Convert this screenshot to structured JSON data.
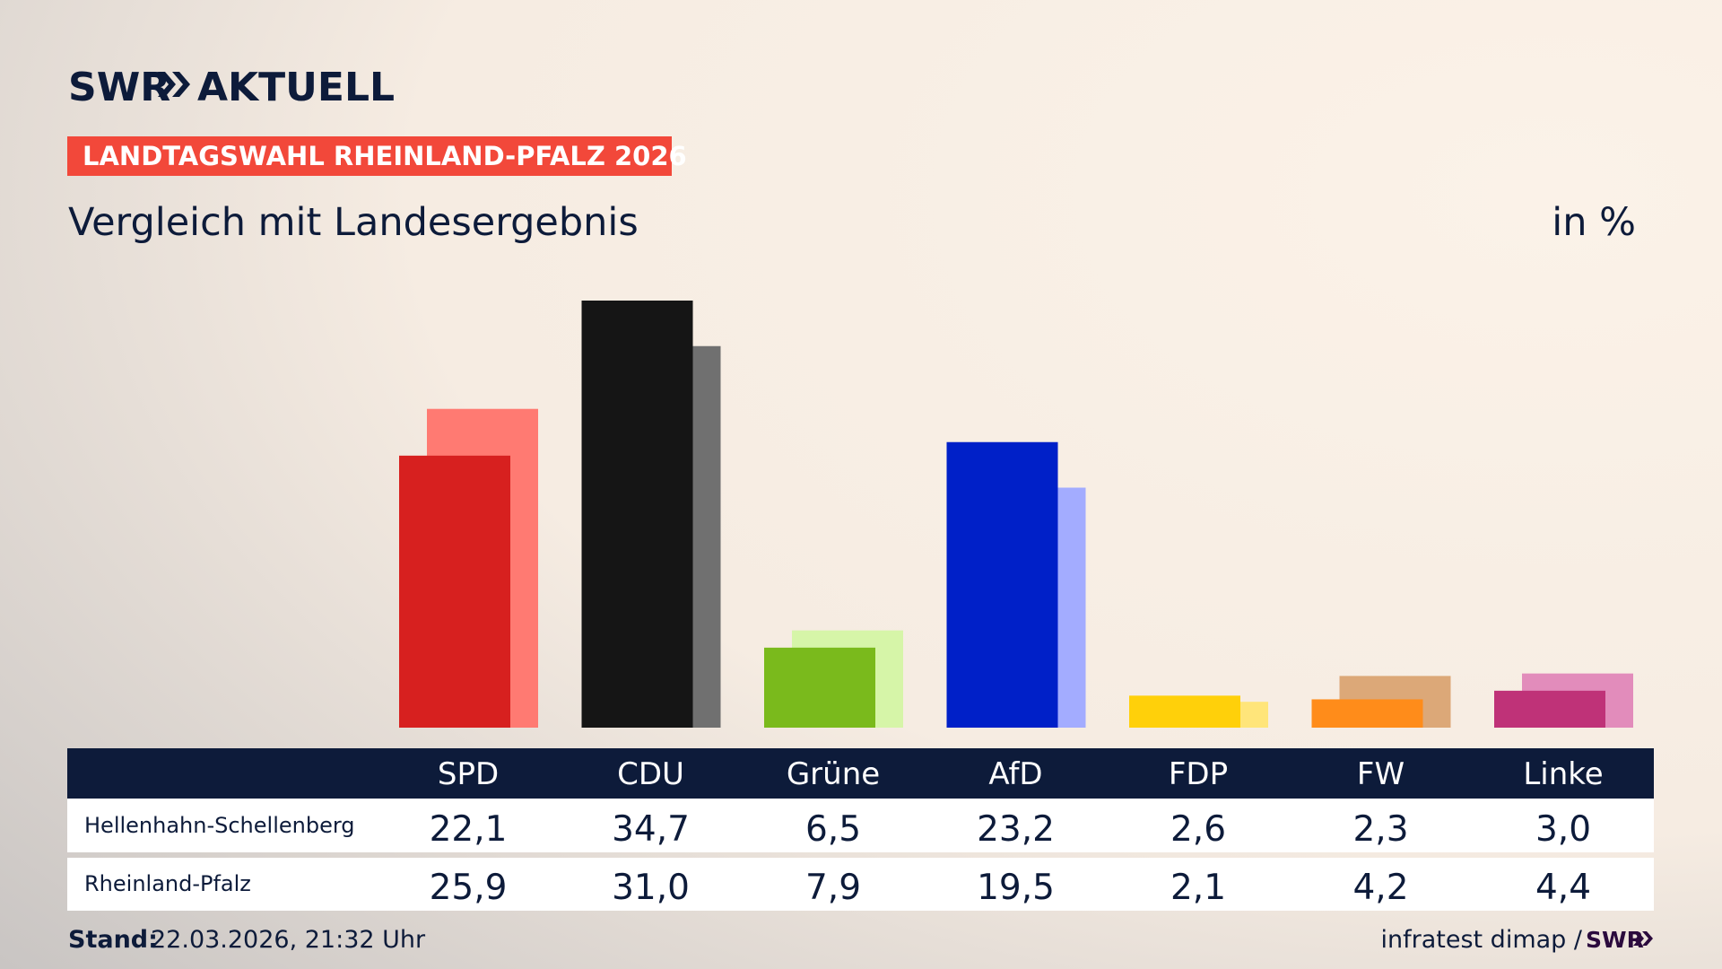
{
  "header": {
    "brand": "SWR",
    "brand_suffix": "AKTUELL",
    "tag": "LANDTAGSWAHL RHEINLAND-PFALZ 2026"
  },
  "chart_data": {
    "type": "bar",
    "title": "Vergleich mit Landesergebnis",
    "unit": "in %",
    "categories": [
      "SPD",
      "CDU",
      "Grüne",
      "AfD",
      "FDP",
      "FW",
      "Linke"
    ],
    "series": [
      {
        "name": "Hellenhahn-Schellenberg",
        "values": [
          22.1,
          34.7,
          6.5,
          23.2,
          2.6,
          2.3,
          3.0
        ],
        "value_labels": [
          "22,1",
          "34,7",
          "6,5",
          "23,2",
          "2,6",
          "2,3",
          "3,0"
        ],
        "colors": [
          "#d7201f",
          "#151515",
          "#7aba1c",
          "#0020c8",
          "#ffd00a",
          "#ff8c1a",
          "#bf3278"
        ]
      },
      {
        "name": "Rheinland-Pfalz",
        "values": [
          25.9,
          31.0,
          7.9,
          19.5,
          2.1,
          4.2,
          4.4
        ],
        "value_labels": [
          "25,9",
          "31,0",
          "7,9",
          "19,5",
          "2,1",
          "4,2",
          "4,4"
        ],
        "colors": [
          "#ff7a72",
          "#707070",
          "#d6f5a8",
          "#a3acff",
          "#ffe57a",
          "#dca878",
          "#e28cbb"
        ]
      }
    ]
  },
  "footer": {
    "stand_label": "Stand:",
    "stand": "22.03.2026, 21:32 Uhr",
    "source": "infratest dimap /",
    "source_logo": "SWR"
  }
}
